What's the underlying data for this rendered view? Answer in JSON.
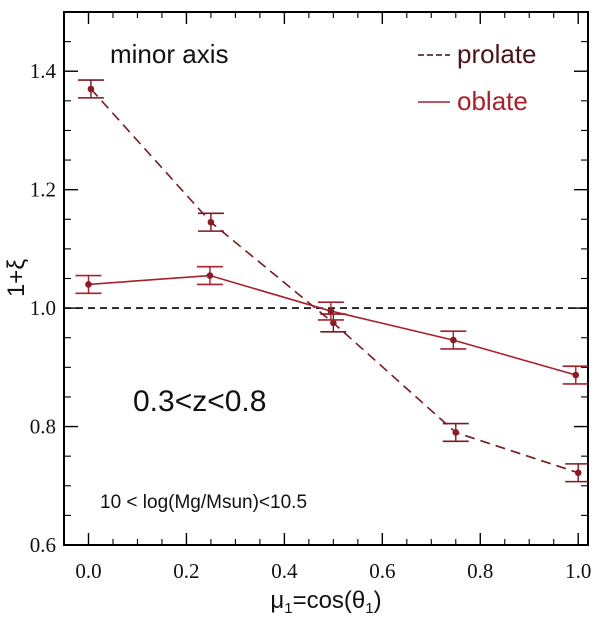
{
  "chart_data": {
    "type": "line",
    "xlabel_main": "μ",
    "xlabel_sub1": "1",
    "xlabel_mid": "=cos(θ",
    "xlabel_sub2": "1",
    "xlabel_end": ")",
    "ylabel": "1+ξ",
    "xlim": [
      -0.05,
      1.02
    ],
    "ylim": [
      0.6,
      1.5
    ],
    "xticks": [
      0.0,
      0.2,
      0.4,
      0.6,
      0.8,
      1.0
    ],
    "xtick_labels": [
      "0.0",
      "0.2",
      "0.4",
      "0.6",
      "0.8",
      "1.0"
    ],
    "yticks": [
      0.6,
      0.8,
      1.0,
      1.2,
      1.4
    ],
    "ytick_labels": [
      "0.6",
      "0.8",
      "1.0",
      "1.2",
      "1.4"
    ],
    "reference_line": 1.0,
    "series": [
      {
        "name": "prolate",
        "style": "dashed",
        "color": "#7a1a22",
        "points": [
          {
            "x": 0.005,
            "y": 1.37,
            "lo": 1.355,
            "hi": 1.385
          },
          {
            "x": 0.25,
            "y": 1.145,
            "lo": 1.13,
            "hi": 1.16
          },
          {
            "x": 0.5,
            "y": 0.975,
            "lo": 0.96,
            "hi": 0.99
          },
          {
            "x": 0.75,
            "y": 0.79,
            "lo": 0.775,
            "hi": 0.805
          },
          {
            "x": 1.0,
            "y": 0.722,
            "lo": 0.707,
            "hi": 0.737
          }
        ]
      },
      {
        "name": "oblate",
        "style": "solid",
        "color": "#a8202c",
        "points": [
          {
            "x": 0.0,
            "y": 1.04,
            "lo": 1.025,
            "hi": 1.055
          },
          {
            "x": 0.248,
            "y": 1.055,
            "lo": 1.04,
            "hi": 1.07
          },
          {
            "x": 0.495,
            "y": 0.995,
            "lo": 0.98,
            "hi": 1.01
          },
          {
            "x": 0.745,
            "y": 0.946,
            "lo": 0.931,
            "hi": 0.961
          },
          {
            "x": 0.995,
            "y": 0.887,
            "lo": 0.872,
            "hi": 0.902
          }
        ]
      }
    ],
    "annotations": {
      "minor_axis": "minor axis",
      "redshift": "0.3<z<0.8",
      "mass": "10 < log(Mg/Msun)<10.5"
    },
    "legend": {
      "prolate_label": "prolate",
      "oblate_label": "oblate",
      "position": "top-right"
    }
  }
}
